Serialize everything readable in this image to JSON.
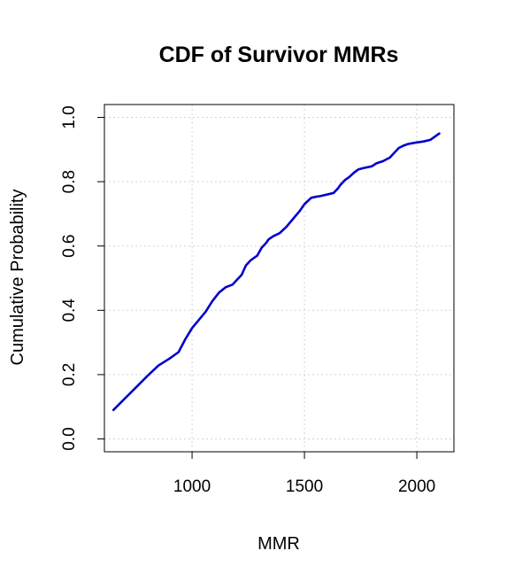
{
  "chart_data": {
    "type": "line",
    "title": "CDF of Survivor MMRs",
    "xlabel": "MMR",
    "ylabel": "Cumulative Probability",
    "xlim": [
      610,
      2165
    ],
    "ylim": [
      -0.04,
      1.04
    ],
    "x_ticks": [
      1000,
      1500,
      2000
    ],
    "x_tick_labels": [
      "1000",
      "1500",
      "2000"
    ],
    "y_ticks": [
      0.0,
      0.2,
      0.4,
      0.6,
      0.8,
      1.0
    ],
    "y_tick_labels": [
      "0.0",
      "0.2",
      "0.4",
      "0.6",
      "0.8",
      "1.0"
    ],
    "grid": true,
    "series": [
      {
        "color": "#0000cd",
        "x": [
          650,
          700,
          750,
          800,
          850,
          900,
          940,
          970,
          1000,
          1030,
          1060,
          1090,
          1120,
          1150,
          1180,
          1200,
          1220,
          1240,
          1260,
          1290,
          1310,
          1330,
          1340,
          1360,
          1390,
          1420,
          1450,
          1480,
          1500,
          1530,
          1550,
          1570,
          1600,
          1630,
          1650,
          1660,
          1680,
          1700,
          1720,
          1740,
          1760,
          1800,
          1820,
          1850,
          1880,
          1900,
          1920,
          1940,
          1960,
          1990,
          2030,
          2060,
          2080,
          2100
        ],
        "y": [
          0.09,
          0.125,
          0.16,
          0.195,
          0.228,
          0.25,
          0.27,
          0.31,
          0.345,
          0.37,
          0.395,
          0.428,
          0.455,
          0.472,
          0.48,
          0.495,
          0.51,
          0.54,
          0.555,
          0.57,
          0.595,
          0.61,
          0.62,
          0.63,
          0.64,
          0.66,
          0.685,
          0.71,
          0.73,
          0.75,
          0.753,
          0.755,
          0.76,
          0.765,
          0.78,
          0.79,
          0.805,
          0.815,
          0.828,
          0.838,
          0.842,
          0.848,
          0.857,
          0.864,
          0.875,
          0.89,
          0.905,
          0.912,
          0.917,
          0.921,
          0.925,
          0.93,
          0.94,
          0.95
        ]
      }
    ]
  }
}
